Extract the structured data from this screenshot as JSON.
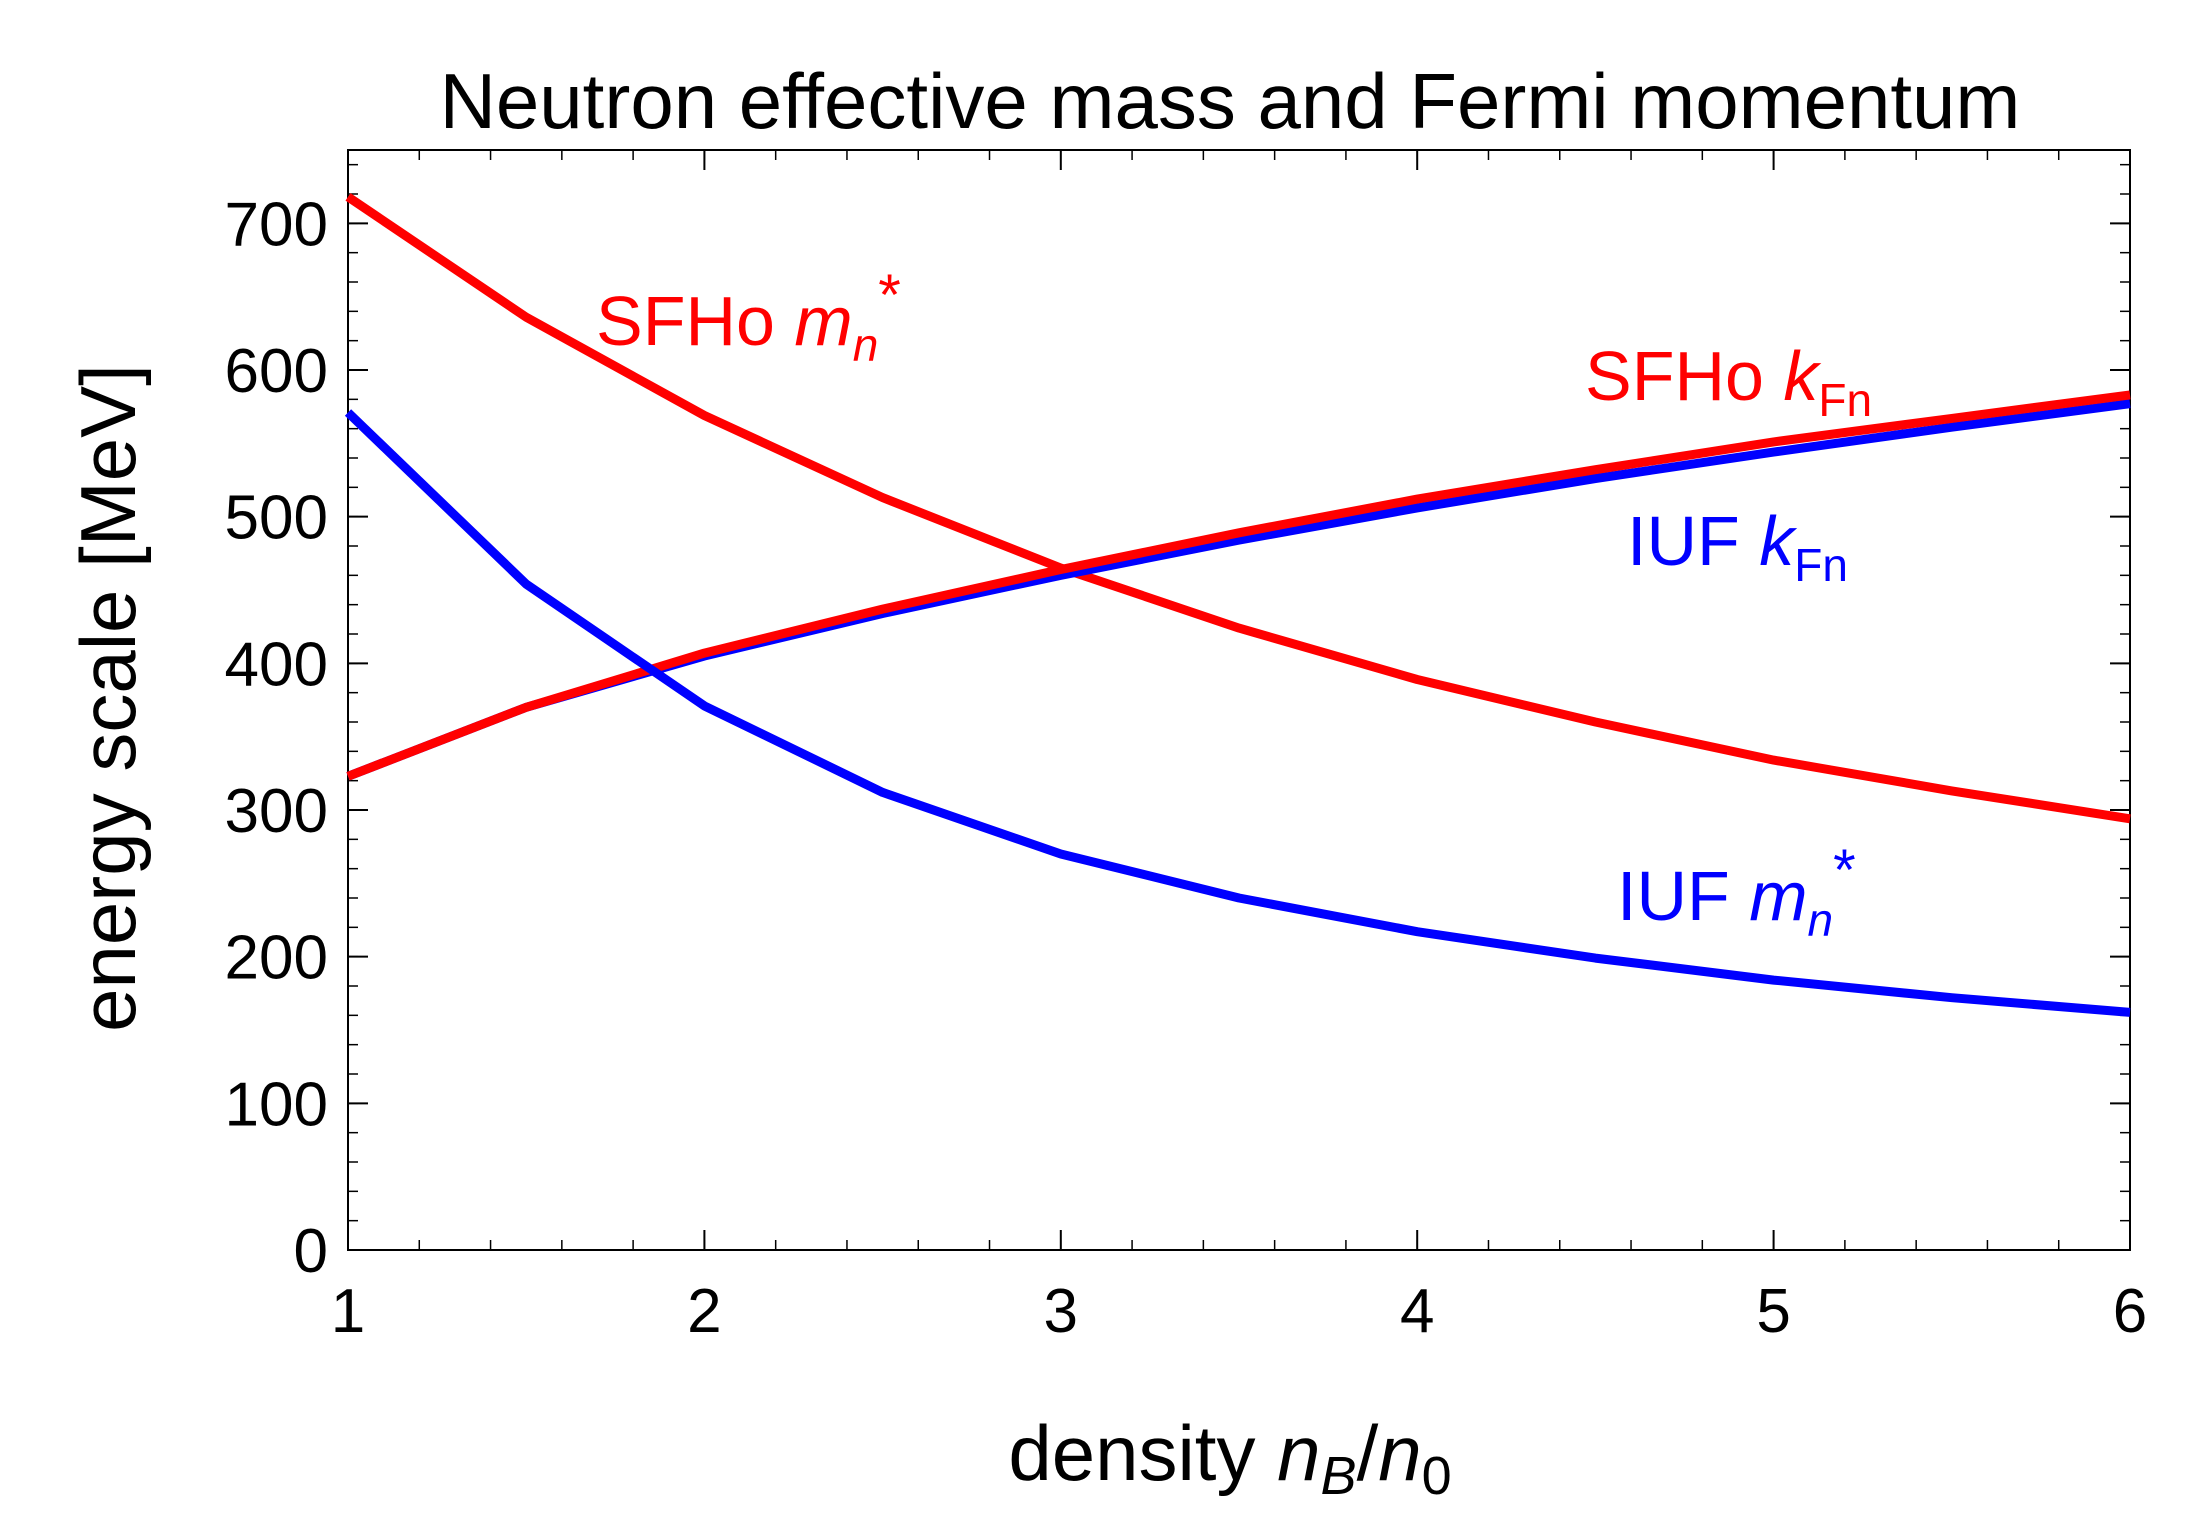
{
  "chart_data": {
    "type": "line",
    "title": "Neutron effective mass and Fermi momentum",
    "xlabel": {
      "prefix": "density ",
      "var1": "n",
      "sub1": "B",
      "slash": "/",
      "var2": "n",
      "sub2": "0"
    },
    "ylabel": "energy scale [MeV]",
    "xlim": [
      1,
      6
    ],
    "ylim": [
      0,
      750
    ],
    "x_ticks": [
      1,
      2,
      3,
      4,
      5,
      6
    ],
    "y_ticks": [
      0,
      100,
      200,
      300,
      400,
      500,
      600,
      700
    ],
    "x_minor_step": 0.2,
    "y_minor_step": 20,
    "grid": false,
    "x": [
      1,
      1.5,
      2,
      2.5,
      3,
      3.5,
      4,
      4.5,
      5,
      5.5,
      6
    ],
    "series": [
      {
        "name": "SFHo m_n*",
        "color": "#ff0000",
        "label": {
          "text": "SFHo ",
          "var": "m",
          "sub": "n",
          "sup": "*"
        },
        "values": [
          718,
          636,
          569,
          513,
          465,
          424,
          389,
          360,
          334,
          313,
          294
        ]
      },
      {
        "name": "IUF k_Fn",
        "color": "#0000ff",
        "label": {
          "text": "IUF ",
          "var": "k",
          "sub": "Fn",
          "sup": ""
        },
        "values": [
          323,
          370,
          405,
          434,
          460,
          484,
          506,
          526,
          544,
          561,
          577
        ]
      },
      {
        "name": "SFHo k_Fn",
        "color": "#ff0000",
        "label": {
          "text": "SFHo ",
          "var": "k",
          "sub": "Fn",
          "sup": ""
        },
        "values": [
          323,
          370,
          407,
          437,
          464,
          489,
          512,
          532,
          551,
          567,
          583
        ]
      },
      {
        "name": "IUF m_n*",
        "color": "#0000ff",
        "label": {
          "text": "IUF ",
          "var": "m",
          "sub": "n",
          "sup": "*"
        },
        "values": [
          571,
          454,
          371,
          312,
          270,
          240,
          217,
          199,
          184,
          172,
          162
        ]
      }
    ]
  }
}
